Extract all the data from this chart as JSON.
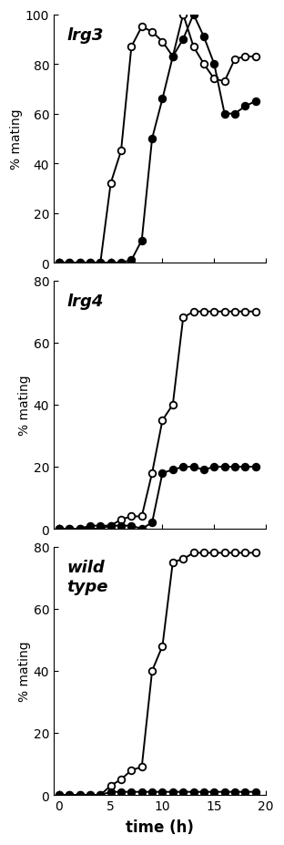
{
  "panels": [
    {
      "label": "lrg3",
      "ylim": [
        0,
        100
      ],
      "yticks": [
        0,
        20,
        40,
        60,
        80,
        100
      ],
      "open_x": [
        0,
        1,
        2,
        3,
        4,
        5,
        6,
        7,
        8,
        9,
        10,
        11,
        12,
        13,
        14,
        15,
        16,
        17,
        18,
        19
      ],
      "open_y": [
        0,
        0,
        0,
        0,
        0,
        32,
        45,
        87,
        95,
        93,
        89,
        83,
        100,
        87,
        80,
        74,
        73,
        82,
        83,
        83
      ],
      "closed_x": [
        0,
        1,
        2,
        3,
        4,
        5,
        6,
        7,
        8,
        9,
        10,
        11,
        12,
        13,
        14,
        15,
        16,
        17,
        18,
        19
      ],
      "closed_y": [
        0,
        0,
        0,
        0,
        0,
        0,
        0,
        1,
        9,
        50,
        66,
        83,
        90,
        100,
        91,
        80,
        60,
        60,
        63,
        65
      ]
    },
    {
      "label": "lrg4",
      "ylim": [
        0,
        80
      ],
      "yticks": [
        0,
        20,
        40,
        60,
        80
      ],
      "open_x": [
        0,
        1,
        2,
        3,
        4,
        5,
        6,
        7,
        8,
        9,
        10,
        11,
        12,
        13,
        14,
        15,
        16,
        17,
        18,
        19
      ],
      "open_y": [
        0,
        0,
        0,
        0,
        0,
        1,
        3,
        4,
        4,
        18,
        35,
        40,
        68,
        70,
        70,
        70,
        70,
        70,
        70,
        70
      ],
      "closed_x": [
        0,
        1,
        2,
        3,
        4,
        5,
        6,
        7,
        8,
        9,
        10,
        11,
        12,
        13,
        14,
        15,
        16,
        17,
        18,
        19
      ],
      "closed_y": [
        0,
        0,
        0,
        1,
        1,
        1,
        1,
        1,
        0,
        2,
        18,
        19,
        20,
        20,
        19,
        20,
        20,
        20,
        20,
        20
      ]
    },
    {
      "label": "wild\ntype",
      "ylim": [
        0,
        80
      ],
      "yticks": [
        0,
        20,
        40,
        60,
        80
      ],
      "open_x": [
        0,
        1,
        2,
        3,
        4,
        5,
        6,
        7,
        8,
        9,
        10,
        11,
        12,
        13,
        14,
        15,
        16,
        17,
        18,
        19
      ],
      "open_y": [
        0,
        0,
        0,
        0,
        0,
        3,
        5,
        8,
        9,
        40,
        48,
        75,
        76,
        78,
        78,
        78,
        78,
        78,
        78,
        78
      ],
      "closed_x": [
        0,
        1,
        2,
        3,
        4,
        5,
        6,
        7,
        8,
        9,
        10,
        11,
        12,
        13,
        14,
        15,
        16,
        17,
        18,
        19
      ],
      "closed_y": [
        0,
        0,
        0,
        0,
        0,
        1,
        1,
        1,
        1,
        1,
        1,
        1,
        1,
        1,
        1,
        1,
        1,
        1,
        1,
        1
      ]
    }
  ],
  "xlabel": "time (h)",
  "ylabel": "% mating",
  "xlim": [
    -0.5,
    20
  ],
  "xticks": [
    0,
    5,
    10,
    15,
    20
  ],
  "linewidth": 1.4,
  "markersize": 5.5,
  "bg_color": "#ffffff",
  "spine_color": "#000000"
}
